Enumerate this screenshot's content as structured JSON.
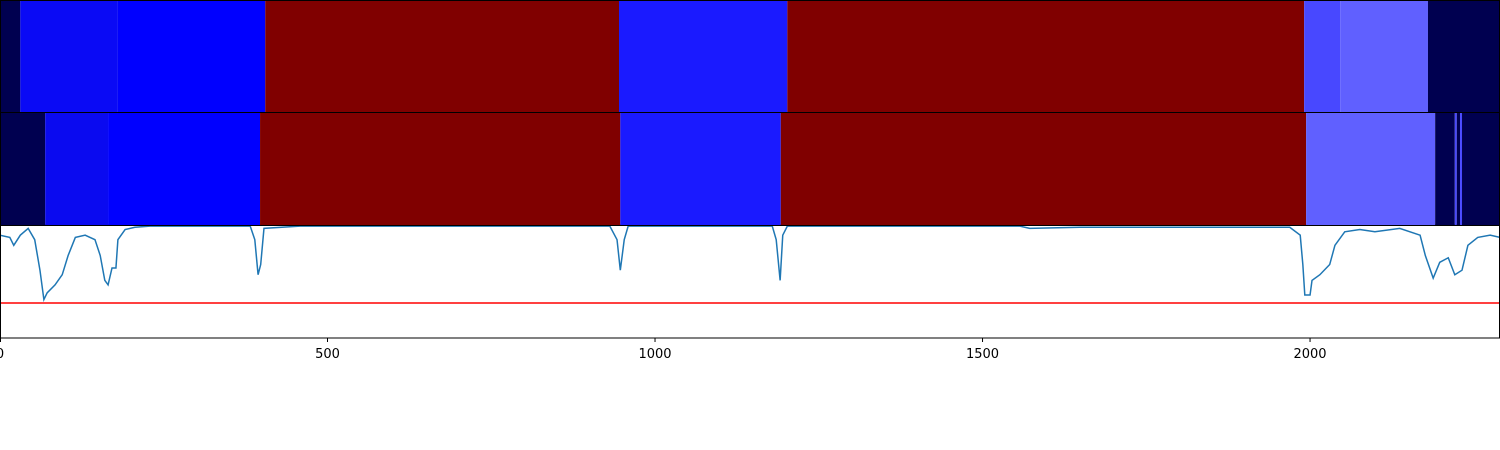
{
  "chart_data": [
    {
      "type": "strip",
      "xlim": [
        0,
        2290
      ],
      "segments": [
        {
          "start": 0,
          "end": 31,
          "color": "#000050"
        },
        {
          "start": 31,
          "end": 180,
          "color": "#0a0af5"
        },
        {
          "start": 180,
          "end": 405,
          "color": "#0000ff"
        },
        {
          "start": 405,
          "end": 945,
          "color": "#800000"
        },
        {
          "start": 945,
          "end": 1202,
          "color": "#1a1aff"
        },
        {
          "start": 1202,
          "end": 1991,
          "color": "#800000"
        },
        {
          "start": 1991,
          "end": 2046,
          "color": "#4848ff"
        },
        {
          "start": 2046,
          "end": 2180,
          "color": "#6060ff"
        },
        {
          "start": 2180,
          "end": 2290,
          "color": "#000050"
        }
      ]
    },
    {
      "type": "strip",
      "xlim": [
        0,
        2290
      ],
      "segments": [
        {
          "start": 0,
          "end": 69,
          "color": "#000050"
        },
        {
          "start": 69,
          "end": 165,
          "color": "#0a0af0"
        },
        {
          "start": 165,
          "end": 397,
          "color": "#0000ff"
        },
        {
          "start": 397,
          "end": 947,
          "color": "#800000"
        },
        {
          "start": 947,
          "end": 1192,
          "color": "#1a1aff"
        },
        {
          "start": 1192,
          "end": 1994,
          "color": "#800000"
        },
        {
          "start": 1994,
          "end": 2191,
          "color": "#6060ff"
        },
        {
          "start": 2191,
          "end": 2221,
          "color": "#000050"
        },
        {
          "start": 2221,
          "end": 2224,
          "color": "#4848ff"
        },
        {
          "start": 2224,
          "end": 2229,
          "color": "#000050"
        },
        {
          "start": 2229,
          "end": 2232,
          "color": "#4848ff"
        },
        {
          "start": 2232,
          "end": 2290,
          "color": "#000050"
        }
      ]
    },
    {
      "type": "line",
      "xlim": [
        0,
        2290
      ],
      "ylim": [
        0,
        1
      ],
      "xticks": [
        0,
        500,
        1000,
        1500,
        2000
      ],
      "color": "#1f77b4",
      "threshold": 0.31,
      "threshold_color": "#ff0000",
      "x": [
        0,
        15,
        21,
        31,
        43,
        53,
        61,
        67,
        72,
        84,
        95,
        104,
        115,
        130,
        145,
        153,
        160,
        165,
        171,
        177,
        180,
        191,
        206,
        229,
        382,
        389,
        394,
        398,
        403,
        458,
        931,
        942,
        947,
        953,
        959,
        1179,
        1185,
        1191,
        1195,
        1202,
        1557,
        1572,
        1649,
        1969,
        1985,
        1989,
        1992,
        2000,
        2003,
        2015,
        2030,
        2038,
        2053,
        2076,
        2099,
        2137,
        2168,
        2176,
        2188,
        2198,
        2211,
        2221,
        2232,
        2241,
        2256,
        2275,
        2290
      ],
      "values": [
        0.91,
        0.89,
        0.82,
        0.91,
        0.97,
        0.87,
        0.6,
        0.34,
        0.4,
        0.47,
        0.56,
        0.73,
        0.89,
        0.91,
        0.87,
        0.73,
        0.51,
        0.47,
        0.62,
        0.62,
        0.87,
        0.96,
        0.98,
        0.99,
        0.99,
        0.87,
        0.56,
        0.65,
        0.97,
        0.99,
        0.99,
        0.87,
        0.6,
        0.87,
        0.99,
        0.99,
        0.87,
        0.51,
        0.91,
        0.99,
        0.99,
        0.97,
        0.98,
        0.98,
        0.91,
        0.65,
        0.38,
        0.38,
        0.51,
        0.56,
        0.65,
        0.82,
        0.94,
        0.96,
        0.94,
        0.97,
        0.91,
        0.73,
        0.53,
        0.67,
        0.71,
        0.56,
        0.6,
        0.82,
        0.89,
        0.91,
        0.89
      ]
    }
  ]
}
